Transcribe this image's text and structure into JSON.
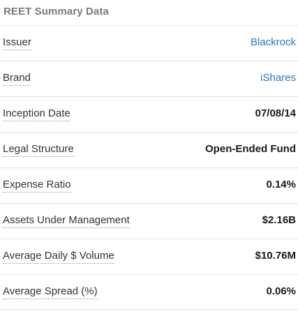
{
  "summary": {
    "title": "REET Summary Data",
    "rows": [
      {
        "label": "Issuer",
        "value": "Blackrock"
      },
      {
        "label": "Brand",
        "value": "iShares"
      },
      {
        "label": "Inception Date",
        "value": "07/08/14"
      },
      {
        "label": "Legal Structure",
        "value": "Open-Ended Fund"
      },
      {
        "label": "Expense Ratio",
        "value": "0.14%"
      },
      {
        "label": "Assets Under Management",
        "value": "$2.16B"
      },
      {
        "label": "Average Daily $ Volume",
        "value": "$10.76M"
      },
      {
        "label": "Average Spread (%)",
        "value": "0.06%"
      }
    ]
  },
  "colors": {
    "title": "#7a7a7a",
    "link": "#2a77b5",
    "divider": "#e3e3e3",
    "dotted_underline": "#6aa7c9"
  }
}
